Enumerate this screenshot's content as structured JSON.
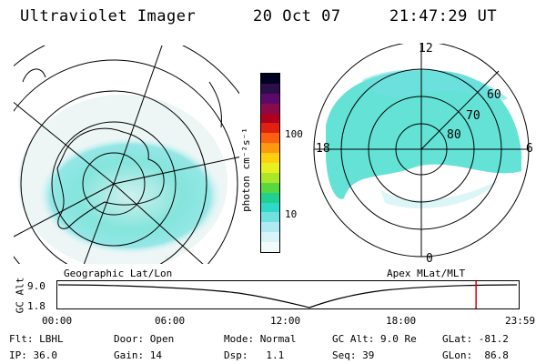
{
  "header": {
    "instrument": "Ultraviolet Imager",
    "date": "20 Oct 07",
    "time": "21:47:29 UT"
  },
  "panels": {
    "left_label": "Geographic Lat/Lon",
    "right_label": "Apex MLat/MLT"
  },
  "colorbar": {
    "label": "photon cm⁻²s⁻¹",
    "ticks": [
      "100",
      "10"
    ],
    "colors": [
      "#000020",
      "#2b0f4a",
      "#5b0a6a",
      "#8a0a4a",
      "#b00020",
      "#e02010",
      "#ff6010",
      "#ff9a10",
      "#ffd010",
      "#e8f020",
      "#a8e828",
      "#58d840",
      "#20d090",
      "#30d8c8",
      "#70e0e0",
      "#b0eaf0",
      "#d8f4f6",
      "#f2fafa"
    ]
  },
  "mlt_plot": {
    "mlt_labels": [
      "12",
      "18",
      "6",
      "0"
    ],
    "lat_labels": [
      "60",
      "70",
      "80"
    ]
  },
  "altitude_plot": {
    "ylabel": "GC Alt",
    "yticks": [
      "9.0",
      "1.8"
    ],
    "xticks": [
      "00:00",
      "06:00",
      "12:00",
      "18:00",
      "23:59"
    ],
    "current_time_fraction": 0.911
  },
  "footer": {
    "row1": [
      "Flt: LBHL",
      "Door: Open",
      "Mode: Normal",
      "GC Alt: 9.0 Re",
      "GLat: -81.2"
    ],
    "row2": [
      "IP: 36.0",
      "Gain: 14",
      "Dsp:   1.1",
      "Seq: 39",
      "GLon:  86.8"
    ]
  }
}
